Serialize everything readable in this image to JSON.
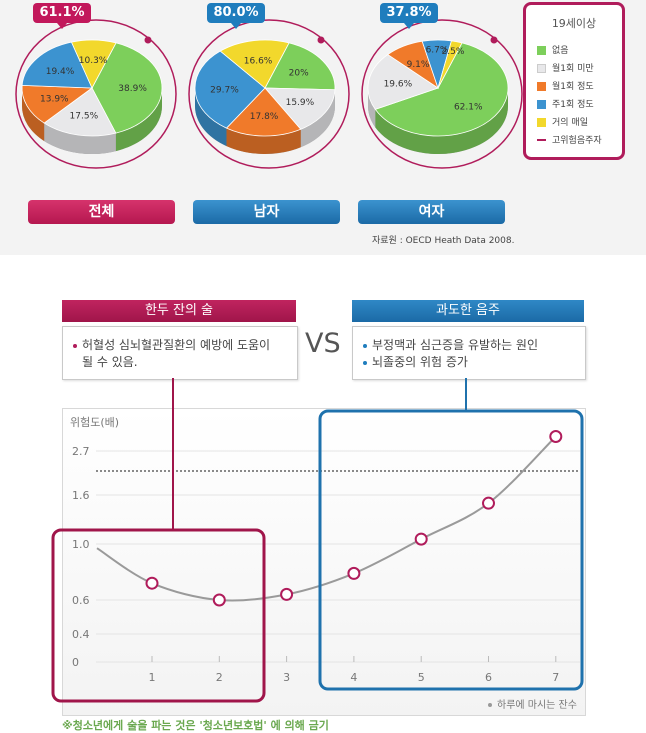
{
  "colors": {
    "none": "#7dcf5b",
    "under_monthly": "#e8e8ea",
    "monthly": "#f07a2a",
    "weekly": "#3c93d0",
    "daily": "#f2d82c",
    "risk": "#b01c5b"
  },
  "pies": [
    {
      "highrisk": "61.1%",
      "tab": "전체",
      "slices": [
        {
          "key": "none",
          "value": 38.9,
          "label": "38.9%"
        },
        {
          "key": "under_monthly",
          "value": 17.5,
          "label": "17.5%"
        },
        {
          "key": "monthly",
          "value": 13.9,
          "label": "13.9%"
        },
        {
          "key": "weekly",
          "value": 19.4,
          "label": "19.4%"
        },
        {
          "key": "daily",
          "value": 10.3,
          "label": "10.3%"
        }
      ]
    },
    {
      "highrisk": "80.0%",
      "tab": "남자",
      "slices": [
        {
          "key": "none",
          "value": 20,
          "label": "20%"
        },
        {
          "key": "under_monthly",
          "value": 15.9,
          "label": "15.9%"
        },
        {
          "key": "monthly",
          "value": 17.8,
          "label": "17.8%"
        },
        {
          "key": "weekly",
          "value": 29.7,
          "label": "29.7%"
        },
        {
          "key": "daily",
          "value": 16.6,
          "label": "16.6%"
        }
      ]
    },
    {
      "highrisk": "37.8%",
      "tab": "여자",
      "slices": [
        {
          "key": "none",
          "value": 62.1,
          "label": "62.1%"
        },
        {
          "key": "under_monthly",
          "value": 19.6,
          "label": "19.6%"
        },
        {
          "key": "monthly",
          "value": 9.1,
          "label": "9.1%"
        },
        {
          "key": "weekly",
          "value": 6.7,
          "label": "6.7%"
        },
        {
          "key": "daily",
          "value": 2.5,
          "label": "2.5%"
        }
      ]
    }
  ],
  "legend": {
    "title": "19세이상",
    "items": [
      {
        "key": "none",
        "label": "없음"
      },
      {
        "key": "under_monthly",
        "label": "월1회 미만"
      },
      {
        "key": "monthly",
        "label": "월1회 정도"
      },
      {
        "key": "weekly",
        "label": "주1회 정도"
      },
      {
        "key": "daily",
        "label": "거의 매일"
      },
      {
        "key": "risk",
        "label": "고위험음주자"
      }
    ]
  },
  "source": "자료원 : OECD Heath Data 2008.",
  "compare": {
    "left": {
      "title": "한두 잔의 술",
      "lines": [
        "허혈성 심뇌혈관질환의 예방에 도움이",
        "될 수 있음."
      ]
    },
    "vs": "VS",
    "right": {
      "title": "과도한 음주",
      "bullets": [
        "부정맥과 심근증을 유발하는 원인",
        "뇌졸중의 위험 증가"
      ]
    }
  },
  "chart_data": {
    "type": "line",
    "ylabel": "위험도(배)",
    "xlabel": "하루에 마시는 잔수",
    "x": [
      1,
      2,
      3,
      4,
      5,
      6,
      7
    ],
    "y": [
      0.72,
      0.6,
      0.64,
      0.79,
      1.06,
      1.5,
      2.85
    ],
    "y_start": 0.97,
    "ytick_labels": [
      "0",
      "0.4",
      "0.6",
      "1.0",
      "1.6",
      "2.7"
    ],
    "xtick_labels": [
      "1",
      "2",
      "3",
      "4",
      "5",
      "6",
      "7"
    ],
    "reference_line": 2.2
  },
  "footnote": "※청소년에게 술을 파는 것은 '청소년보호법' 에 의해 금기"
}
